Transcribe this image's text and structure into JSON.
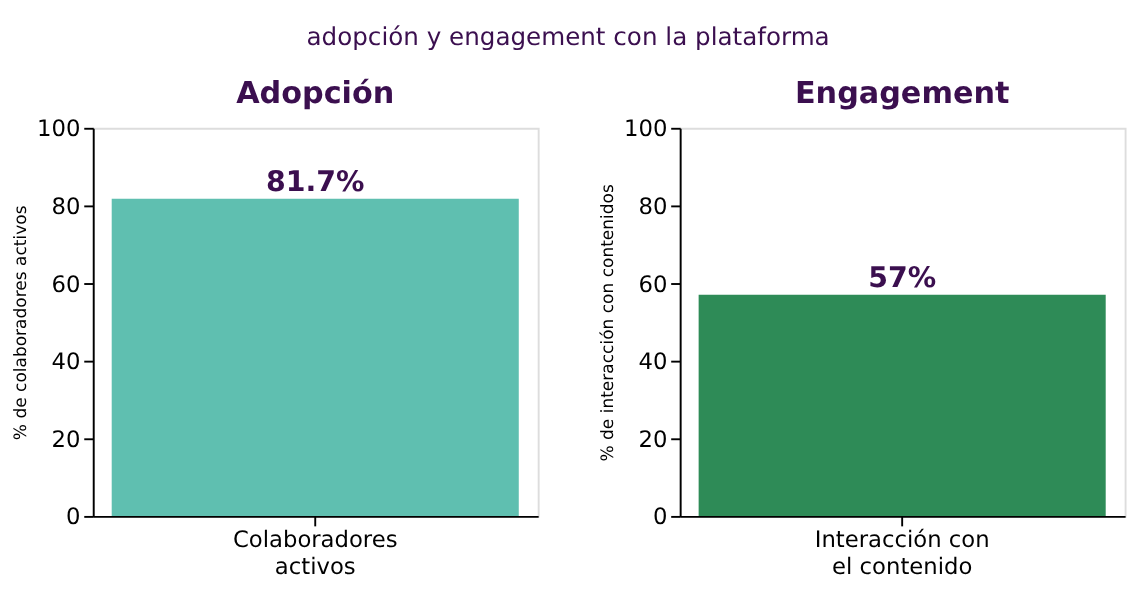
{
  "chart_data": [
    {
      "type": "bar",
      "title": "Adopción",
      "ylabel": "% de colaboradores activos",
      "categories": [
        "Colaboradores\nactivos"
      ],
      "values": [
        81.7
      ],
      "value_labels": [
        "81.7%"
      ],
      "color": "#5fbfb0",
      "ylim": [
        0,
        100
      ],
      "yticks": [
        0,
        20,
        40,
        60,
        80,
        100
      ],
      "grid": false,
      "annotations": [
        "adopción y engagement con la plataforma"
      ]
    },
    {
      "type": "bar",
      "title": "Engagement",
      "ylabel": "% de interacción con contenidos",
      "categories": [
        "Interacción con\nel contenido"
      ],
      "values": [
        57
      ],
      "value_labels": [
        "57%"
      ],
      "color": "#2e8b57",
      "ylim": [
        0,
        100
      ],
      "yticks": [
        0,
        20,
        40,
        60,
        80,
        100
      ],
      "grid": false
    }
  ]
}
